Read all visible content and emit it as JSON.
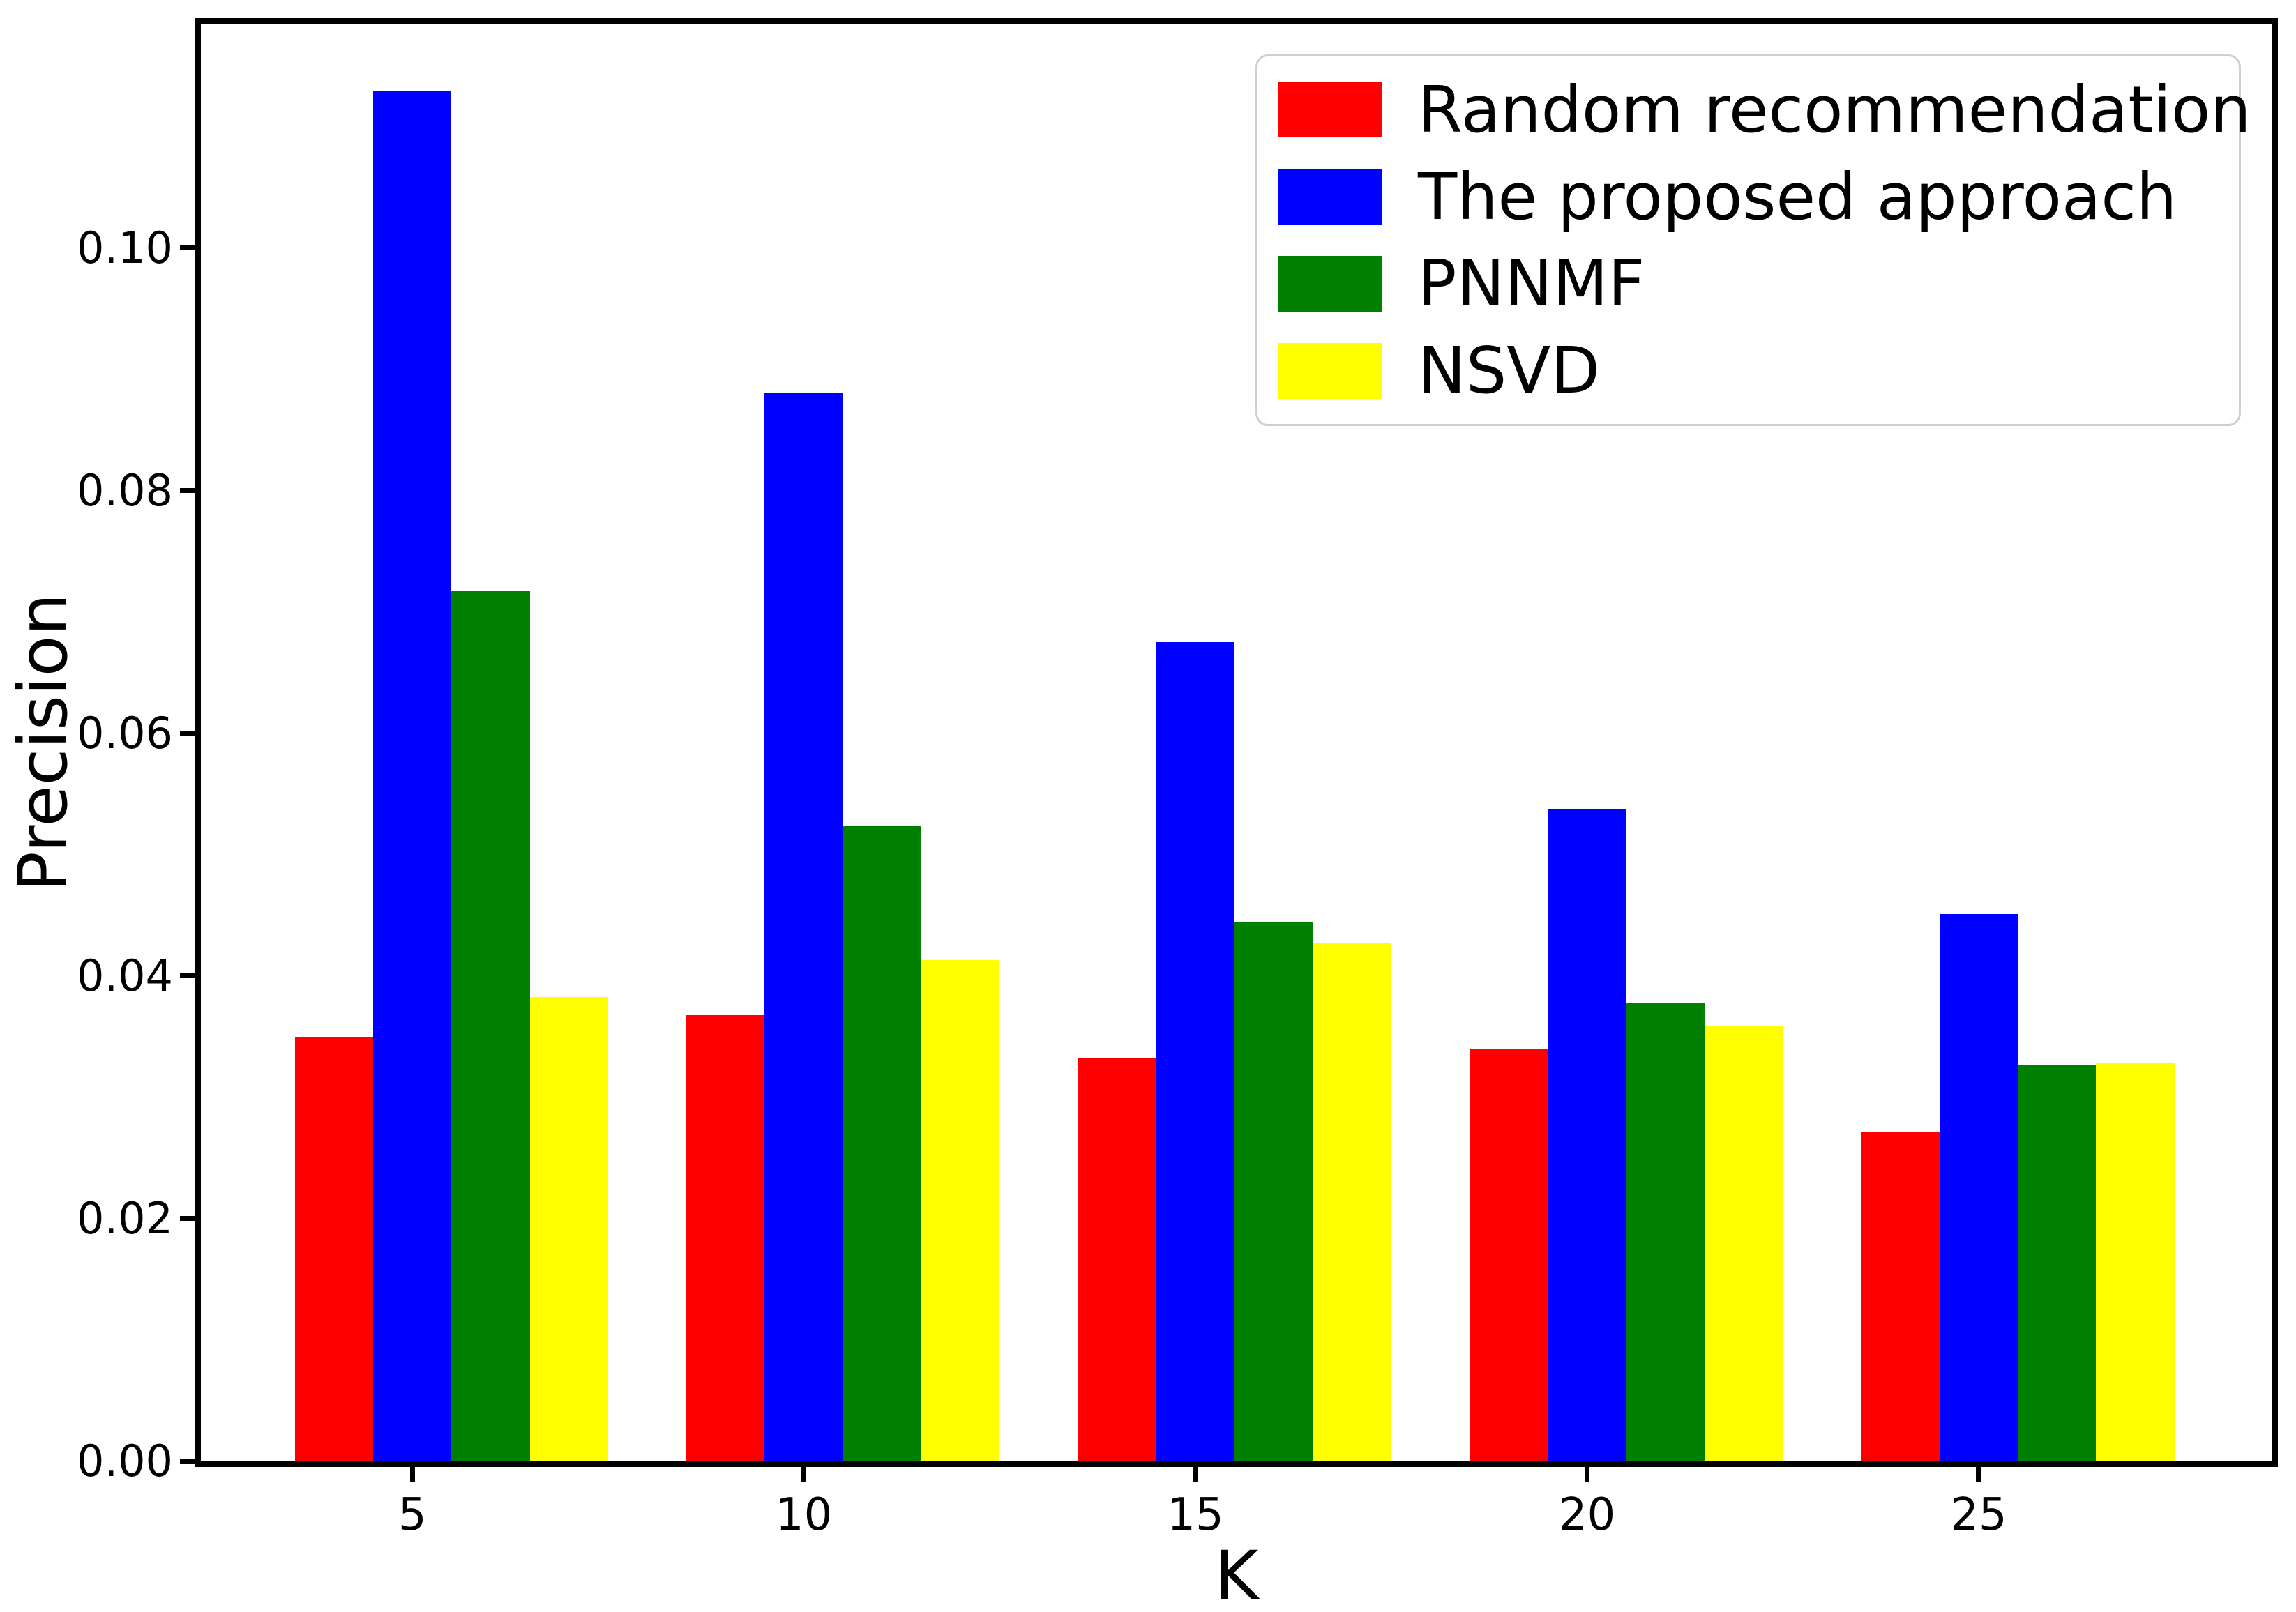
{
  "chart_data": {
    "type": "bar",
    "title": "",
    "xlabel": "K",
    "ylabel": "Precision",
    "categories": [
      5,
      10,
      15,
      20,
      25
    ],
    "series": [
      {
        "name": "Random recommendation",
        "color": "#ff0000",
        "values": [
          0.035,
          0.0368,
          0.0333,
          0.034,
          0.0271
        ]
      },
      {
        "name": "The proposed approach",
        "color": "#0000ff",
        "values": [
          0.1129,
          0.0881,
          0.0675,
          0.0538,
          0.0451
        ]
      },
      {
        "name": "PNNMF",
        "color": "#008000",
        "values": [
          0.0718,
          0.0524,
          0.0444,
          0.0378,
          0.0327
        ]
      },
      {
        "name": "NSVD",
        "color": "#ffff00",
        "values": [
          0.0383,
          0.0413,
          0.0427,
          0.0359,
          0.0328
        ]
      }
    ],
    "yticks": [
      0.0,
      0.02,
      0.04,
      0.06,
      0.08,
      0.1
    ],
    "ytick_format_decimals": 2,
    "ylim": [
      0,
      0.1185
    ],
    "grid": false,
    "legend_position": "upper right",
    "axis_color": "#000000",
    "legend_border_color": "#cfcfcf"
  }
}
